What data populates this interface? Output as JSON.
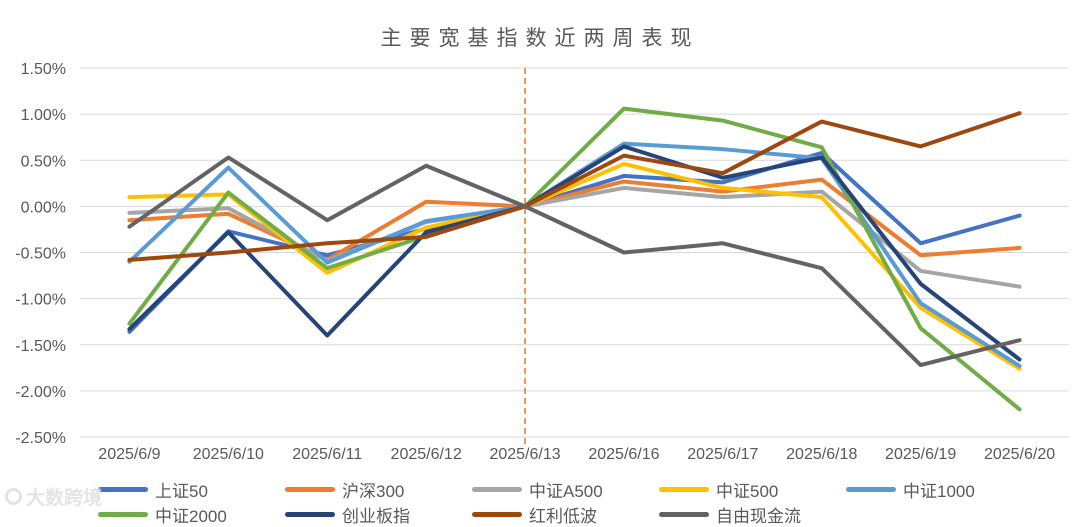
{
  "title": "主要宽基指数近两周表现",
  "watermark": {
    "text": "大数跨境",
    "icon": "ring-logo"
  },
  "chart_data": {
    "type": "line",
    "title": "主要宽基指数近两周表现",
    "categories": [
      "2025/6/9",
      "2025/6/10",
      "2025/6/11",
      "2025/6/12",
      "2025/6/13",
      "2025/6/16",
      "2025/6/17",
      "2025/6/18",
      "2025/6/19",
      "2025/6/20"
    ],
    "unit": "percent",
    "series": [
      {
        "name": "上证50",
        "color": "#4472C4",
        "values": [
          -1.36,
          -0.27,
          -0.53,
          -0.24,
          0.0,
          0.33,
          0.26,
          0.58,
          -0.4,
          -0.1
        ]
      },
      {
        "name": "沪深300",
        "color": "#ED7D31",
        "values": [
          -0.15,
          -0.08,
          -0.58,
          0.05,
          0.0,
          0.27,
          0.16,
          0.29,
          -0.53,
          -0.45
        ]
      },
      {
        "name": "中证A500",
        "color": "#A5A5A5",
        "values": [
          -0.07,
          -0.02,
          -0.59,
          -0.17,
          0.0,
          0.2,
          0.1,
          0.16,
          -0.7,
          -0.87
        ]
      },
      {
        "name": "中证500",
        "color": "#FFC000",
        "values": [
          0.1,
          0.13,
          -0.72,
          -0.23,
          0.0,
          0.46,
          0.2,
          0.1,
          -1.1,
          -1.76
        ]
      },
      {
        "name": "中证1000",
        "color": "#5B9BD5",
        "values": [
          -0.6,
          0.42,
          -0.61,
          -0.16,
          0.0,
          0.68,
          0.62,
          0.52,
          -1.05,
          -1.73
        ]
      },
      {
        "name": "中证2000",
        "color": "#70AD47",
        "values": [
          -1.27,
          0.15,
          -0.67,
          -0.32,
          0.0,
          1.06,
          0.93,
          0.64,
          -1.32,
          -2.2
        ]
      },
      {
        "name": "创业板指",
        "color": "#264478",
        "values": [
          -1.33,
          -0.28,
          -1.4,
          -0.28,
          0.0,
          0.65,
          0.31,
          0.53,
          -0.84,
          -1.66
        ]
      },
      {
        "name": "红利低波",
        "color": "#9E480E",
        "values": [
          -0.58,
          -0.5,
          -0.4,
          -0.33,
          0.0,
          0.55,
          0.36,
          0.92,
          0.65,
          1.01
        ]
      },
      {
        "name": "自由现金流",
        "color": "#636363",
        "values": [
          -0.22,
          0.53,
          -0.15,
          0.44,
          0.0,
          -0.5,
          -0.4,
          -0.67,
          -1.72,
          -1.45
        ]
      }
    ],
    "ylim": [
      -2.5,
      1.5
    ],
    "ytick_step": 0.5,
    "ytick_labels": [
      "1.50%",
      "1.00%",
      "0.50%",
      "0.00%",
      "-0.50%",
      "-1.00%",
      "-1.50%",
      "-2.00%",
      "-2.50%"
    ],
    "grid": true,
    "gridline_color": "#D9D9D9",
    "axis_text_color": "#595959",
    "legend_position": "bottom",
    "annotations": [
      {
        "type": "vline",
        "at": "2025/6/13",
        "color": "#ED7D31",
        "style": "dashed"
      }
    ]
  }
}
